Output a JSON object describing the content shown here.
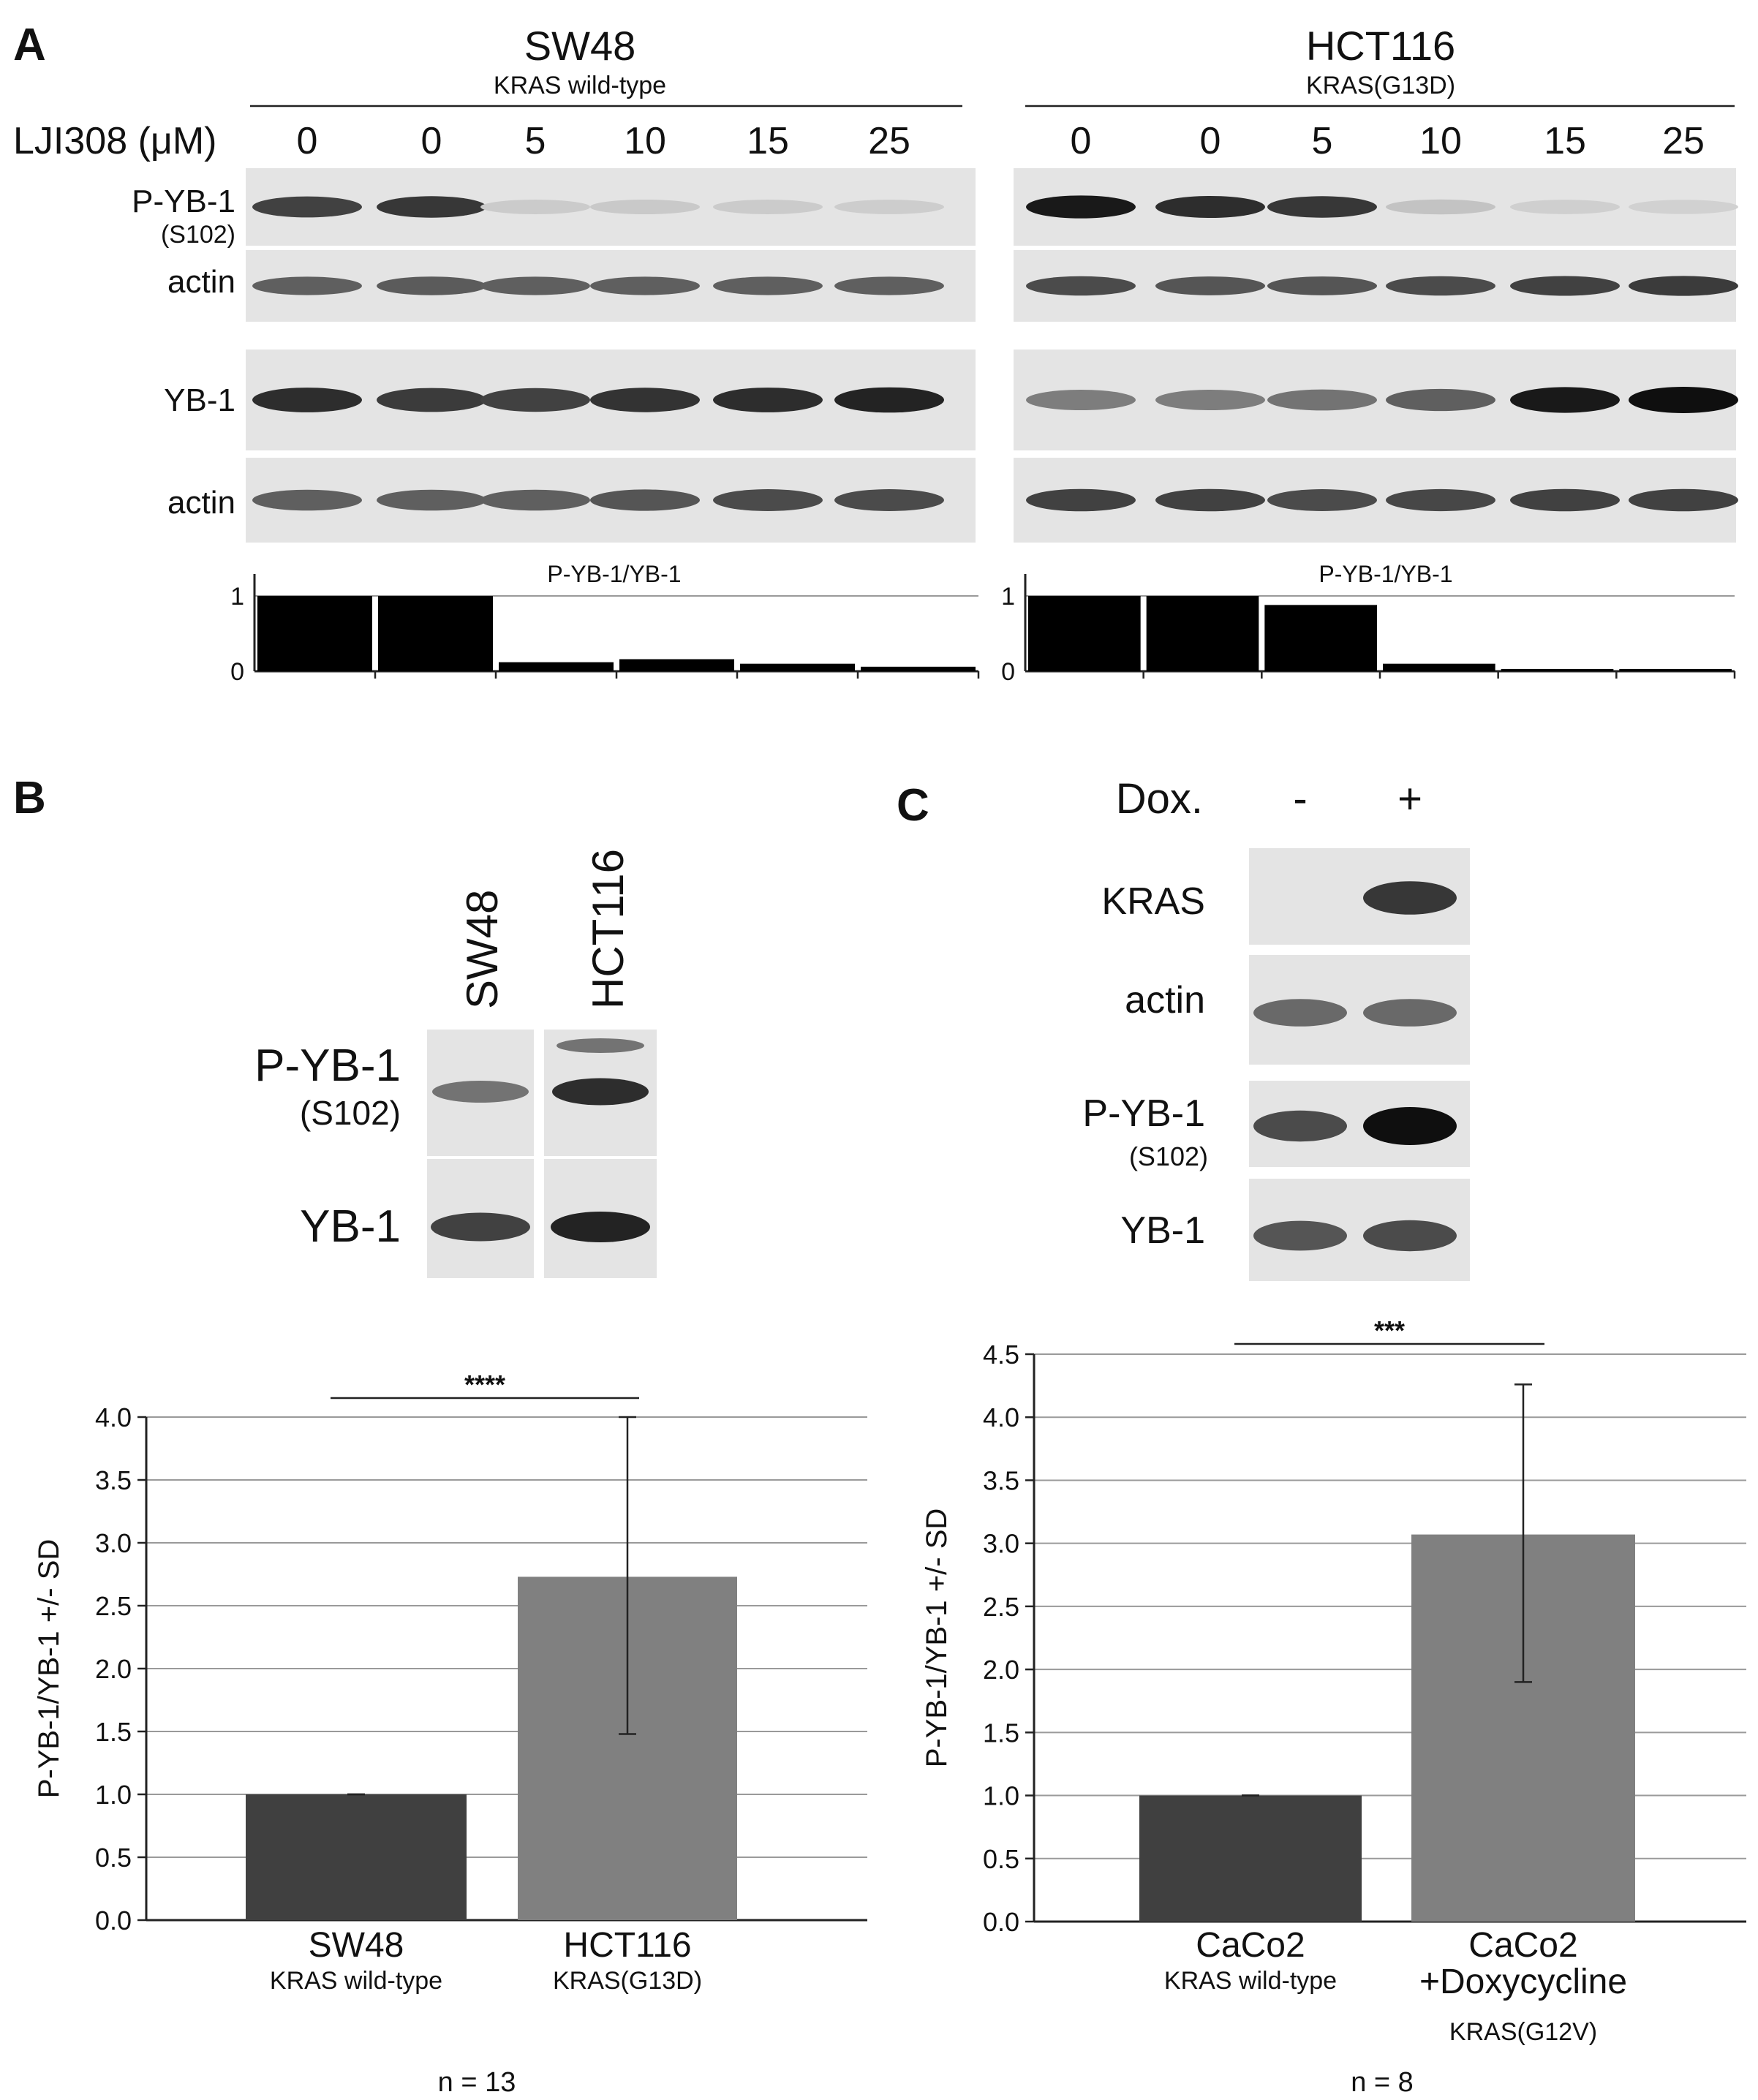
{
  "panel_a": {
    "label": "A",
    "treatment_label": "LJI308 (μM)",
    "left": {
      "cell_line": "SW48",
      "genotype": "KRAS wild-type",
      "doses": [
        "0",
        "0",
        "5",
        "10",
        "15",
        "25"
      ],
      "blot_labels": {
        "p_yb1": "P-YB-1",
        "p_yb1_site": "(S102)",
        "actin1": "actin",
        "yb1": "YB-1",
        "actin2": "actin"
      },
      "band_intensity": {
        "p_yb1": [
          0.75,
          0.8,
          0.06,
          0.07,
          0.06,
          0.05
        ],
        "actin1": [
          0.6,
          0.62,
          0.6,
          0.6,
          0.6,
          0.6
        ],
        "yb1": [
          0.85,
          0.78,
          0.75,
          0.82,
          0.85,
          0.9
        ],
        "actin2": [
          0.6,
          0.6,
          0.6,
          0.65,
          0.7,
          0.7
        ]
      }
    },
    "right": {
      "cell_line": "HCT116",
      "genotype": "KRAS(G13D)",
      "doses": [
        "0",
        "0",
        "5",
        "10",
        "15",
        "25"
      ],
      "blot_labels": {
        "p_yb1": "P-YB-1",
        "p_yb1_site": "(S102)",
        "actin1": "actin",
        "yb1": "YB-1",
        "actin2": "actin"
      },
      "band_intensity": {
        "p_yb1": [
          0.95,
          0.85,
          0.8,
          0.1,
          0.04,
          0.03
        ],
        "actin1": [
          0.7,
          0.65,
          0.65,
          0.7,
          0.75,
          0.78
        ],
        "yb1": [
          0.45,
          0.45,
          0.5,
          0.6,
          0.95,
          1.0
        ],
        "actin2": [
          0.75,
          0.75,
          0.7,
          0.72,
          0.75,
          0.75
        ]
      }
    },
    "ratio_title": "P-YB-1/YB-1",
    "ratio_ticks": [
      "0",
      "1"
    ]
  },
  "panel_b": {
    "label": "B",
    "lanes": [
      "SW48",
      "HCT116"
    ],
    "blot_labels": {
      "p_yb1": "P-YB-1",
      "p_yb1_site": "(S102)",
      "yb1": "YB-1"
    },
    "band_intensity": {
      "p_yb1": [
        0.5,
        0.85
      ],
      "p_yb1_upper": [
        0.0,
        0.5
      ],
      "yb1": [
        0.75,
        0.9
      ]
    },
    "significance": "****",
    "n_label": "n = 13",
    "category_labels": [
      {
        "name": "SW48",
        "sub": "KRAS wild-type"
      },
      {
        "name": "HCT116",
        "sub": "KRAS(G13D)"
      }
    ]
  },
  "panel_c": {
    "label": "C",
    "treatment_label": "Dox.",
    "lanes": [
      "-",
      "+"
    ],
    "blot_labels": {
      "kras": "KRAS",
      "actin": "actin",
      "p_yb1": "P-YB-1",
      "p_yb1_site": "(S102)",
      "yb1": "YB-1"
    },
    "band_intensity": {
      "kras": [
        0.0,
        0.8
      ],
      "actin": [
        0.55,
        0.55
      ],
      "p_yb1": [
        0.7,
        1.0
      ],
      "yb1": [
        0.65,
        0.7
      ]
    },
    "significance": "***",
    "n_label": "n = 8",
    "category_labels": [
      {
        "name": "CaCo2",
        "sub": "KRAS wild-type"
      },
      {
        "name": "CaCo2\n+Doxycycline",
        "sub": "KRAS(G12V)"
      }
    ]
  },
  "colors": {
    "bar_dark": "#404040",
    "bar_light": "#808080",
    "ratio_bar": "#000000"
  },
  "chart_data": [
    {
      "type": "bar",
      "title": "P-YB-1/YB-1",
      "categories": [
        "0",
        "0",
        "5",
        "10",
        "15",
        "25"
      ],
      "values": [
        1.0,
        1.0,
        0.12,
        0.16,
        0.1,
        0.06
      ],
      "ylim": [
        0,
        1
      ],
      "yticks": [
        "0",
        "1"
      ],
      "grid": true
    },
    {
      "type": "bar",
      "title": "P-YB-1/YB-1",
      "categories": [
        "0",
        "0",
        "5",
        "10",
        "15",
        "25"
      ],
      "values": [
        1.0,
        1.0,
        0.88,
        0.1,
        0.03,
        0.03
      ],
      "ylim": [
        0,
        1
      ],
      "yticks": [
        "0",
        "1"
      ],
      "grid": true
    },
    {
      "type": "bar",
      "categories": [
        "SW48",
        "HCT116"
      ],
      "values": [
        1.0,
        2.73
      ],
      "error_low": [
        1.0,
        1.48
      ],
      "error_high": [
        1.0,
        4.0
      ],
      "ylabel": "P-YB-1/YB-1 +/- SD",
      "ylim": [
        0,
        4.0
      ],
      "yticks": [
        "0.0",
        "0.5",
        "1.0",
        "1.5",
        "2.0",
        "2.5",
        "3.0",
        "3.5",
        "4.0"
      ],
      "grid": true
    },
    {
      "type": "bar",
      "categories": [
        "CaCo2",
        "CaCo2 +Doxycycline"
      ],
      "values": [
        1.0,
        3.07
      ],
      "error_low": [
        1.0,
        1.9
      ],
      "error_high": [
        1.0,
        4.26
      ],
      "ylabel": "P-YB-1/YB-1 +/- SD",
      "ylim": [
        0,
        4.5
      ],
      "yticks": [
        "0.0",
        "0.5",
        "1.0",
        "1.5",
        "2.0",
        "2.5",
        "3.0",
        "3.5",
        "4.0",
        "4.5"
      ],
      "grid": true
    }
  ]
}
